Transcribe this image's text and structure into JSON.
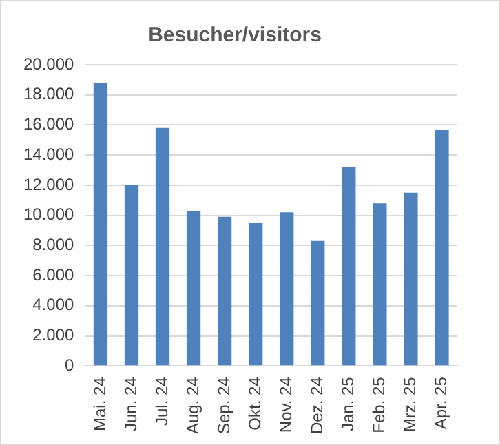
{
  "chart_data": {
    "type": "bar",
    "title": "Besucher/visitors",
    "categories": [
      "Mai. 24",
      "Jun. 24",
      "Jul. 24",
      "Aug. 24",
      "Sep. 24",
      "Okt. 24",
      "Nov. 24",
      "Dez. 24",
      "Jan. 25",
      "Feb. 25",
      "Mrz. 25",
      "Apr. 25"
    ],
    "values": [
      18800,
      12000,
      15800,
      10300,
      9900,
      9500,
      10200,
      8300,
      13200,
      10800,
      11500,
      15700
    ],
    "color": "#4f81bd",
    "ylim": [
      0,
      20000
    ],
    "yticks": [
      0,
      {
        "value": 2000,
        "label": "2.000"
      },
      {
        "value": 4000,
        "label": "4.000"
      },
      {
        "value": 6000,
        "label": "6.000"
      },
      {
        "value": 8000,
        "label": "8.000"
      },
      {
        "value": 10000,
        "label": "10.000"
      },
      {
        "value": 12000,
        "label": "12.000"
      },
      {
        "value": 14000,
        "label": "14.000"
      },
      {
        "value": 16000,
        "label": "16.000"
      },
      {
        "value": 18000,
        "label": "18.000"
      },
      {
        "value": 20000,
        "label": "20.000"
      }
    ],
    "grid": "y"
  }
}
